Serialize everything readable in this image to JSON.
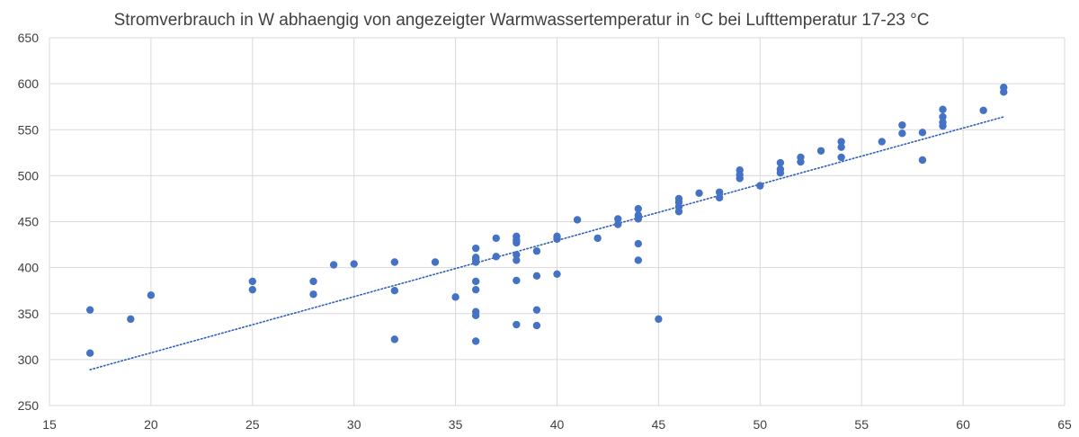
{
  "chart_data": {
    "type": "scatter",
    "title": "Stromverbrauch in W abhaengig von angezeigter Warmwassertemperatur in °C bei Lufttemperatur 17-23 °C",
    "xlabel": "",
    "ylabel": "",
    "xlim": [
      15,
      65
    ],
    "ylim": [
      250,
      650
    ],
    "x_ticks": [
      "15",
      "20",
      "25",
      "30",
      "35",
      "40",
      "45",
      "50",
      "55",
      "60",
      "65"
    ],
    "y_ticks": [
      "250",
      "300",
      "350",
      "400",
      "450",
      "500",
      "550",
      "600",
      "650"
    ],
    "grid": true,
    "legend": "none",
    "colors": {
      "point": "#4472c4",
      "trendline": "#2e5fb8",
      "grid": "#d9d9d9",
      "text": "#404040"
    },
    "trendline": {
      "type": "linear",
      "style": "dotted",
      "x": [
        17,
        62
      ],
      "y": [
        289,
        564
      ]
    },
    "series": [
      {
        "points": [
          [
            17,
            354
          ],
          [
            17,
            307
          ],
          [
            19,
            344
          ],
          [
            20,
            370
          ],
          [
            25,
            385
          ],
          [
            25,
            376
          ],
          [
            28,
            385
          ],
          [
            28,
            371
          ],
          [
            29,
            403
          ],
          [
            30,
            404
          ],
          [
            32,
            406
          ],
          [
            32,
            375
          ],
          [
            32,
            322
          ],
          [
            34,
            406
          ],
          [
            35,
            368
          ],
          [
            36,
            421
          ],
          [
            36,
            411
          ],
          [
            36,
            409
          ],
          [
            36,
            406
          ],
          [
            36,
            385
          ],
          [
            36,
            376
          ],
          [
            36,
            352
          ],
          [
            36,
            348
          ],
          [
            36,
            320
          ],
          [
            37,
            432
          ],
          [
            37,
            412
          ],
          [
            38,
            434
          ],
          [
            38,
            430
          ],
          [
            38,
            427
          ],
          [
            38,
            414
          ],
          [
            38,
            408
          ],
          [
            38,
            386
          ],
          [
            38,
            338
          ],
          [
            39,
            418
          ],
          [
            39,
            391
          ],
          [
            39,
            354
          ],
          [
            39,
            337
          ],
          [
            40,
            434
          ],
          [
            40,
            431
          ],
          [
            40,
            393
          ],
          [
            41,
            452
          ],
          [
            42,
            432
          ],
          [
            43,
            453
          ],
          [
            43,
            447
          ],
          [
            44,
            464
          ],
          [
            44,
            457
          ],
          [
            44,
            453
          ],
          [
            44,
            426
          ],
          [
            44,
            408
          ],
          [
            45,
            344
          ],
          [
            46,
            475
          ],
          [
            46,
            471
          ],
          [
            46,
            466
          ],
          [
            46,
            461
          ],
          [
            47,
            481
          ],
          [
            48,
            482
          ],
          [
            48,
            476
          ],
          [
            49,
            506
          ],
          [
            49,
            501
          ],
          [
            49,
            497
          ],
          [
            50,
            489
          ],
          [
            51,
            514
          ],
          [
            51,
            507
          ],
          [
            51,
            503
          ],
          [
            52,
            520
          ],
          [
            52,
            515
          ],
          [
            53,
            527
          ],
          [
            54,
            537
          ],
          [
            54,
            531
          ],
          [
            54,
            520
          ],
          [
            56,
            537
          ],
          [
            57,
            555
          ],
          [
            57,
            546
          ],
          [
            58,
            547
          ],
          [
            58,
            517
          ],
          [
            59,
            572
          ],
          [
            59,
            564
          ],
          [
            59,
            558
          ],
          [
            59,
            554
          ],
          [
            61,
            571
          ],
          [
            62,
            596
          ],
          [
            62,
            591
          ]
        ]
      }
    ]
  }
}
